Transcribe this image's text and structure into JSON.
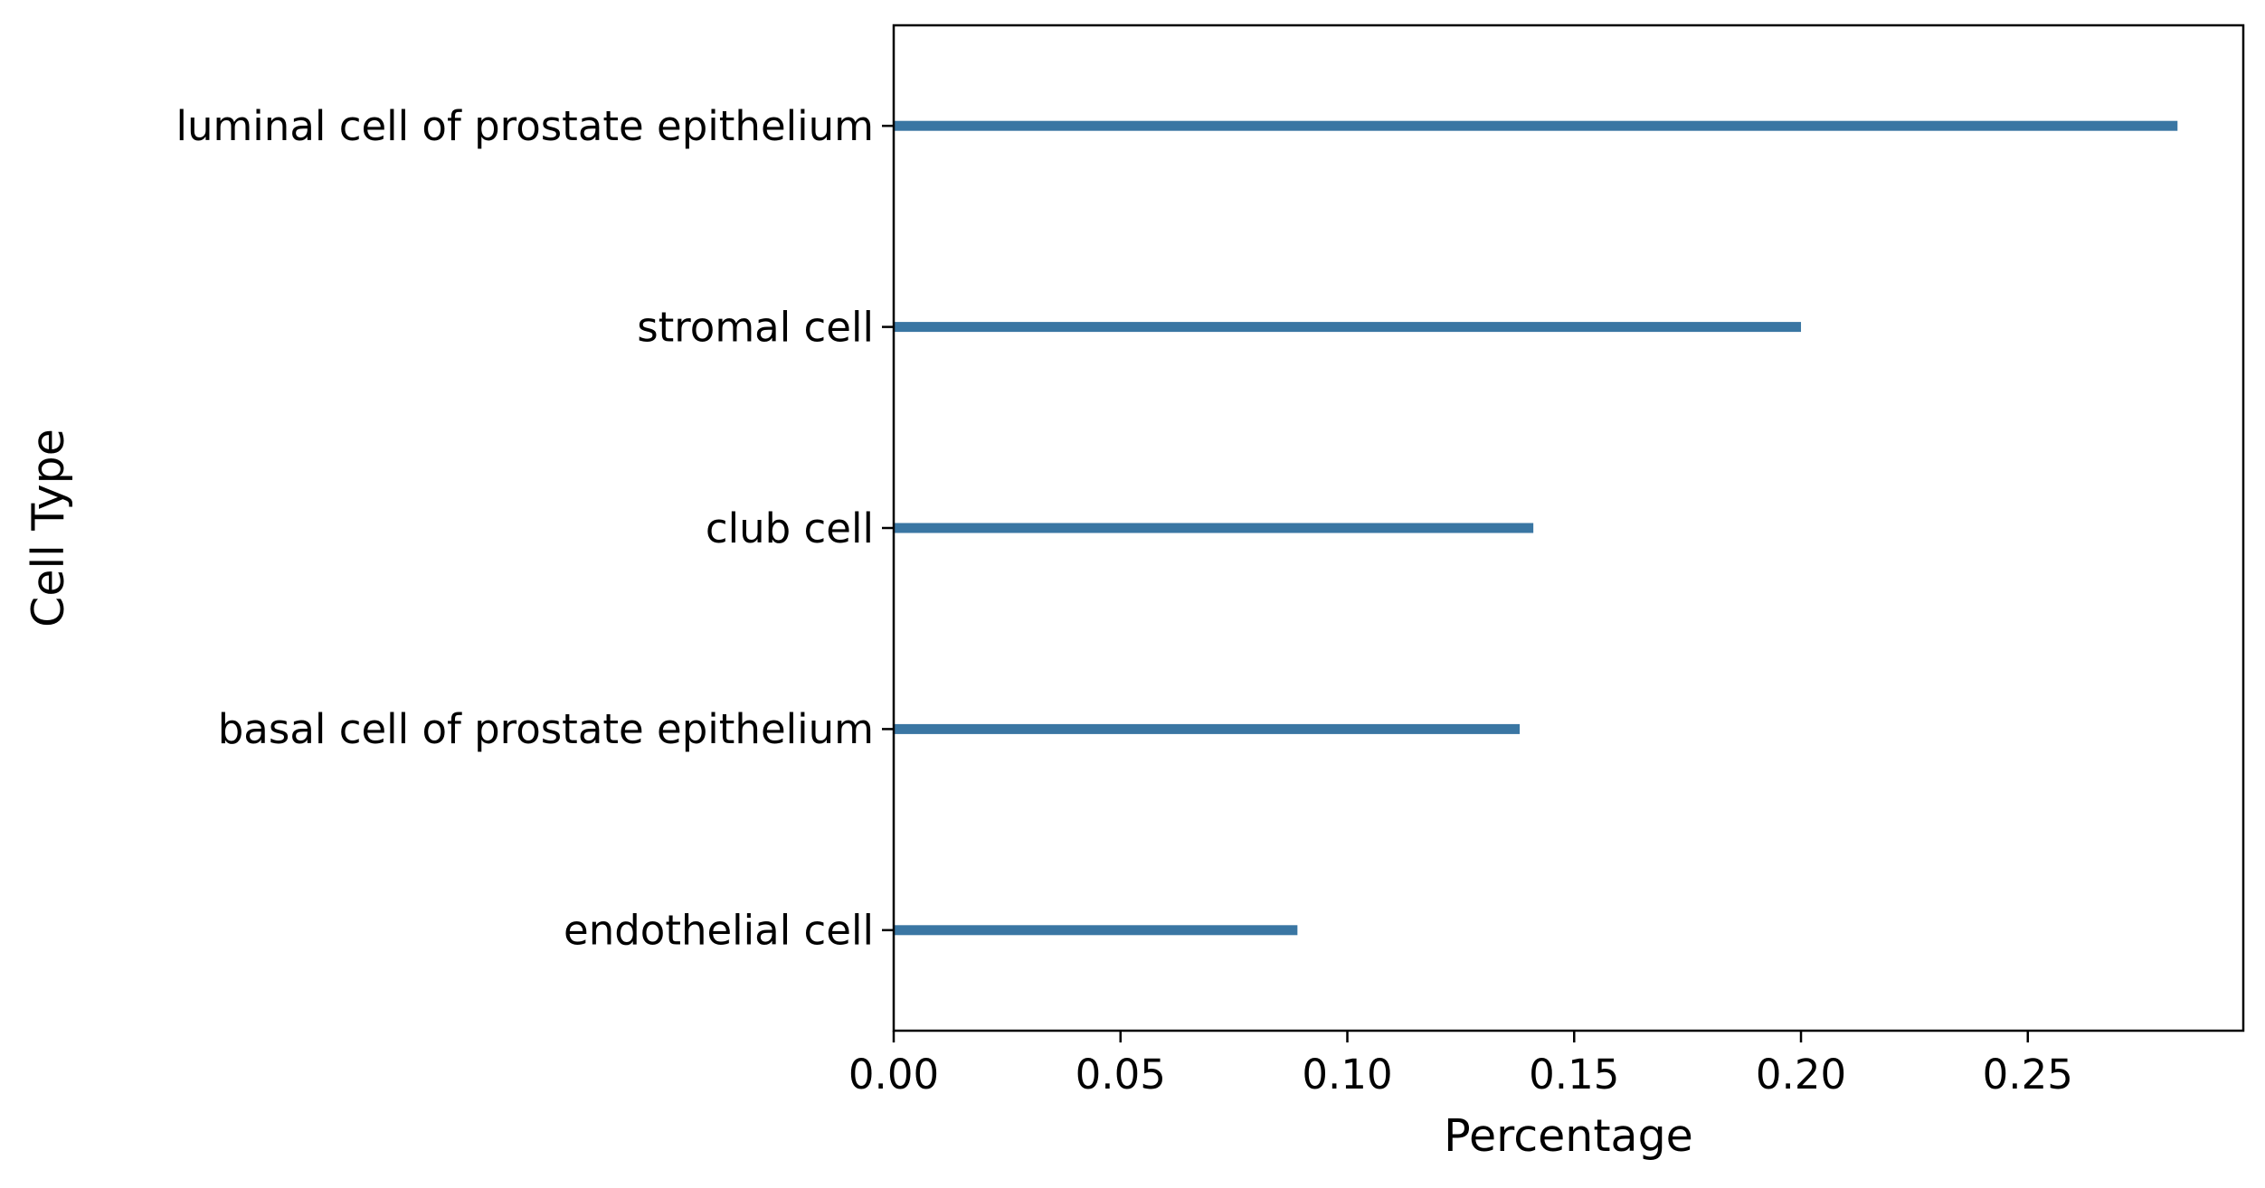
{
  "chart_data": {
    "type": "bar",
    "orientation": "horizontal",
    "categories": [
      "luminal cell of prostate epithelium",
      "stromal cell",
      "club cell",
      "basal cell of prostate epithelium",
      "endothelial cell"
    ],
    "values": [
      0.283,
      0.2,
      0.141,
      0.138,
      0.089
    ],
    "xlabel": "Percentage",
    "ylabel": "Cell Type",
    "xlim": [
      0,
      0.2975
    ],
    "xticks": [
      0.0,
      0.05,
      0.1,
      0.15,
      0.2,
      0.25
    ],
    "xtick_labels": [
      "0.00",
      "0.05",
      "0.10",
      "0.15",
      "0.20",
      "0.25"
    ],
    "grid": false,
    "legend": "none",
    "bar_color": "#3a76a3"
  }
}
